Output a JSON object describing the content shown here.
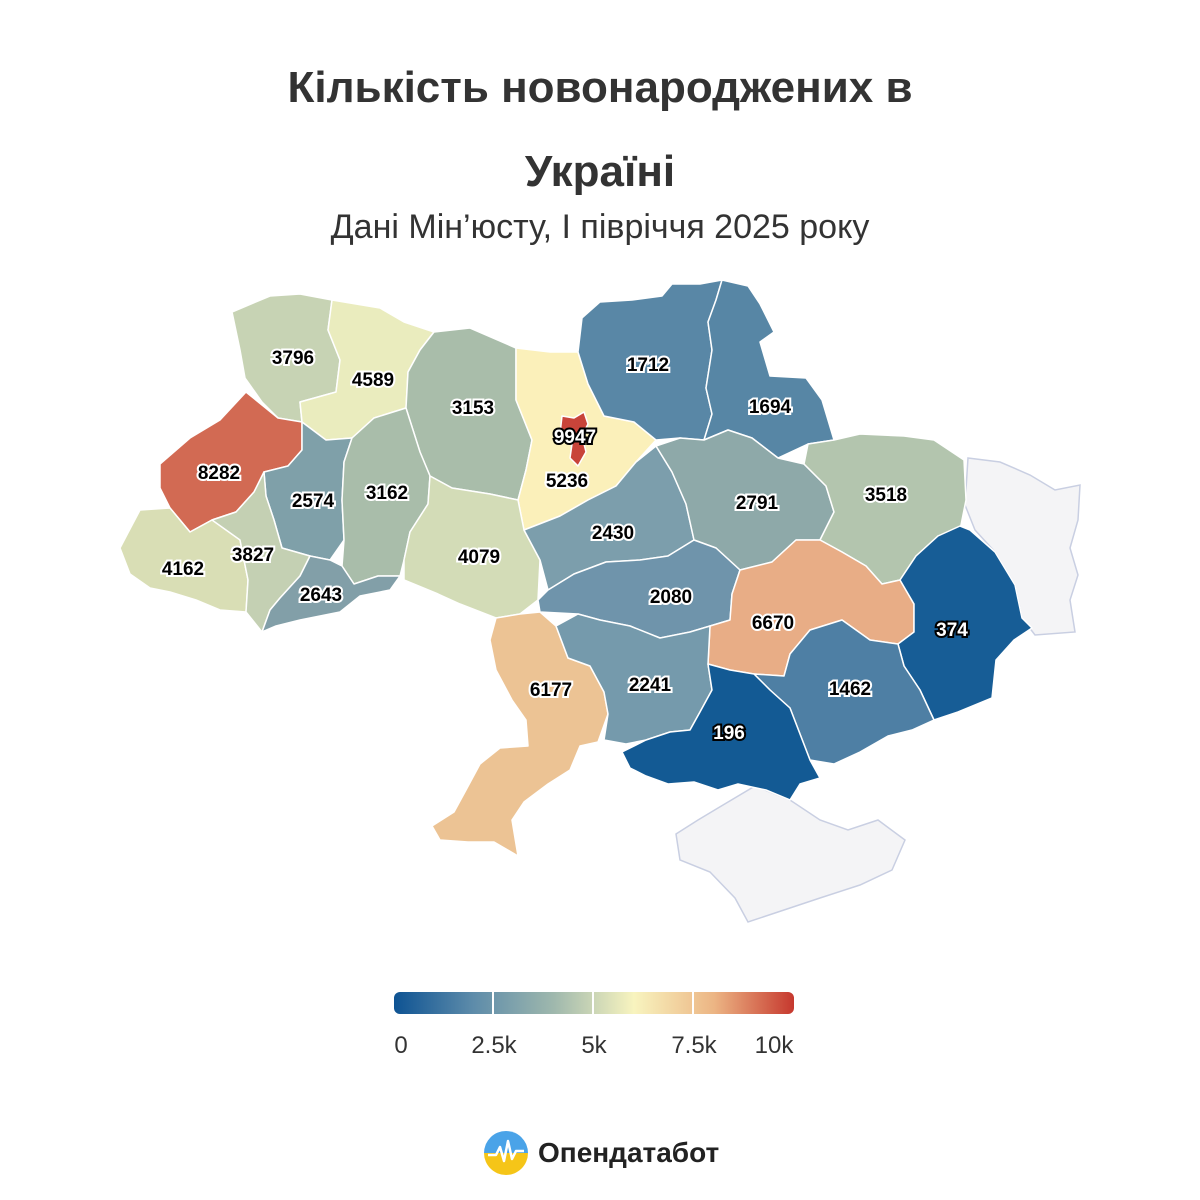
{
  "title_line1": "Кількість новонароджених в",
  "title_line2": "Україні",
  "subtitle": "Дані Мін’юсту, І півріччя 2025 року",
  "map": {
    "regions": [
      {
        "id": "volyn",
        "value": 3796,
        "color": "#c7d3b4"
      },
      {
        "id": "rivne",
        "value": 4589,
        "color": "#eaecbe"
      },
      {
        "id": "zhytomyr",
        "value": 3153,
        "color": "#a9bdaa"
      },
      {
        "id": "kyiv-oblast",
        "value": 5236,
        "color": "#fbf0ba"
      },
      {
        "id": "kyiv-city",
        "value": 9947,
        "color": "#c8443a"
      },
      {
        "id": "chernihiv",
        "value": 1712,
        "color": "#5987a6"
      },
      {
        "id": "sumy",
        "value": 1694,
        "color": "#5786a5"
      },
      {
        "id": "lviv",
        "value": 8282,
        "color": "#d26a53"
      },
      {
        "id": "ternopil",
        "value": 2574,
        "color": "#7fa0a9"
      },
      {
        "id": "khmelnytskyi",
        "value": 3162,
        "color": "#a9bdaa"
      },
      {
        "id": "vinnytsia",
        "value": 4079,
        "color": "#d3dcb7"
      },
      {
        "id": "cherkasy",
        "value": 2430,
        "color": "#7c9eac"
      },
      {
        "id": "poltava",
        "value": 2791,
        "color": "#8ea9a9"
      },
      {
        "id": "kharkiv",
        "value": 3518,
        "color": "#b3c5ae"
      },
      {
        "id": "zakarpattia",
        "value": 4162,
        "color": "#d9deb5"
      },
      {
        "id": "ivano-frankivsk",
        "value": 3827,
        "color": "#c4d0b3"
      },
      {
        "id": "chernivtsi",
        "value": 2643,
        "color": "#829fa8"
      },
      {
        "id": "kirovohrad",
        "value": 2080,
        "color": "#6f94ab"
      },
      {
        "id": "dnipropetrovsk",
        "value": 6670,
        "color": "#e8ad86"
      },
      {
        "id": "donetsk",
        "value": 374,
        "color": "#175d96"
      },
      {
        "id": "odesa",
        "value": 6177,
        "color": "#ecc394"
      },
      {
        "id": "mykolaiv",
        "value": 2241,
        "color": "#759aac"
      },
      {
        "id": "zaporizhzhia",
        "value": 1462,
        "color": "#4e7fa4"
      },
      {
        "id": "kherson",
        "value": 196,
        "color": "#135a94"
      },
      {
        "id": "luhansk",
        "value": null,
        "color": "#f4f4f6"
      },
      {
        "id": "crimea",
        "value": null,
        "color": "#f4f4f6"
      }
    ]
  },
  "legend": {
    "colors": [
      "#0e5393",
      "#5e8caa",
      "#9fb8ad",
      "#f8f4bf",
      "#ecb584",
      "#c6382e"
    ],
    "ticks": [
      "0",
      "2.5k",
      "5k",
      "7.5k",
      "10k"
    ],
    "min": 0,
    "max": 10000
  },
  "logo": {
    "text": "Опендатабот",
    "colors": [
      "#4aa3e8",
      "#f5c518"
    ]
  }
}
